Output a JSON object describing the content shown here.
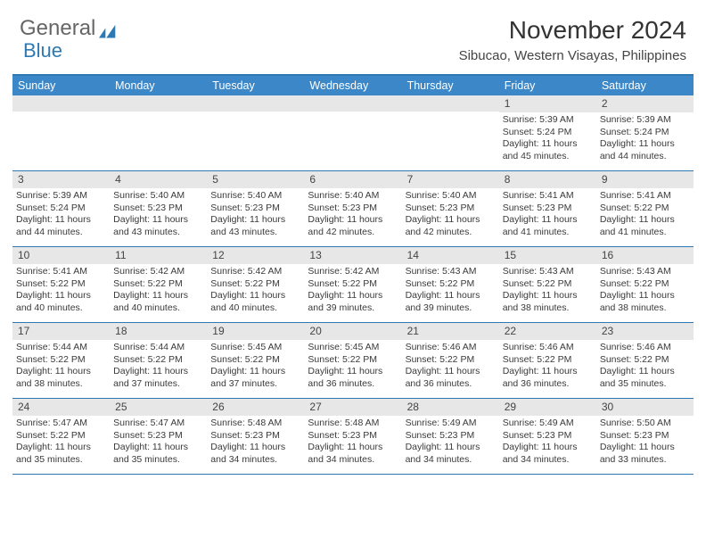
{
  "logo": {
    "text1": "General",
    "text2": "Blue"
  },
  "title": "November 2024",
  "location": "Sibucao, Western Visayas, Philippines",
  "colors": {
    "header_bar": "#3b87c8",
    "border": "#2d79b3",
    "daynum_bg": "#e7e7e7",
    "text": "#333333",
    "logo_blue": "#2d79b3"
  },
  "weekdays": [
    "Sunday",
    "Monday",
    "Tuesday",
    "Wednesday",
    "Thursday",
    "Friday",
    "Saturday"
  ],
  "weeks": [
    [
      {
        "day": "",
        "sunrise": "",
        "sunset": "",
        "daylight": ""
      },
      {
        "day": "",
        "sunrise": "",
        "sunset": "",
        "daylight": ""
      },
      {
        "day": "",
        "sunrise": "",
        "sunset": "",
        "daylight": ""
      },
      {
        "day": "",
        "sunrise": "",
        "sunset": "",
        "daylight": ""
      },
      {
        "day": "",
        "sunrise": "",
        "sunset": "",
        "daylight": ""
      },
      {
        "day": "1",
        "sunrise": "Sunrise: 5:39 AM",
        "sunset": "Sunset: 5:24 PM",
        "daylight": "Daylight: 11 hours and 45 minutes."
      },
      {
        "day": "2",
        "sunrise": "Sunrise: 5:39 AM",
        "sunset": "Sunset: 5:24 PM",
        "daylight": "Daylight: 11 hours and 44 minutes."
      }
    ],
    [
      {
        "day": "3",
        "sunrise": "Sunrise: 5:39 AM",
        "sunset": "Sunset: 5:24 PM",
        "daylight": "Daylight: 11 hours and 44 minutes."
      },
      {
        "day": "4",
        "sunrise": "Sunrise: 5:40 AM",
        "sunset": "Sunset: 5:23 PM",
        "daylight": "Daylight: 11 hours and 43 minutes."
      },
      {
        "day": "5",
        "sunrise": "Sunrise: 5:40 AM",
        "sunset": "Sunset: 5:23 PM",
        "daylight": "Daylight: 11 hours and 43 minutes."
      },
      {
        "day": "6",
        "sunrise": "Sunrise: 5:40 AM",
        "sunset": "Sunset: 5:23 PM",
        "daylight": "Daylight: 11 hours and 42 minutes."
      },
      {
        "day": "7",
        "sunrise": "Sunrise: 5:40 AM",
        "sunset": "Sunset: 5:23 PM",
        "daylight": "Daylight: 11 hours and 42 minutes."
      },
      {
        "day": "8",
        "sunrise": "Sunrise: 5:41 AM",
        "sunset": "Sunset: 5:23 PM",
        "daylight": "Daylight: 11 hours and 41 minutes."
      },
      {
        "day": "9",
        "sunrise": "Sunrise: 5:41 AM",
        "sunset": "Sunset: 5:22 PM",
        "daylight": "Daylight: 11 hours and 41 minutes."
      }
    ],
    [
      {
        "day": "10",
        "sunrise": "Sunrise: 5:41 AM",
        "sunset": "Sunset: 5:22 PM",
        "daylight": "Daylight: 11 hours and 40 minutes."
      },
      {
        "day": "11",
        "sunrise": "Sunrise: 5:42 AM",
        "sunset": "Sunset: 5:22 PM",
        "daylight": "Daylight: 11 hours and 40 minutes."
      },
      {
        "day": "12",
        "sunrise": "Sunrise: 5:42 AM",
        "sunset": "Sunset: 5:22 PM",
        "daylight": "Daylight: 11 hours and 40 minutes."
      },
      {
        "day": "13",
        "sunrise": "Sunrise: 5:42 AM",
        "sunset": "Sunset: 5:22 PM",
        "daylight": "Daylight: 11 hours and 39 minutes."
      },
      {
        "day": "14",
        "sunrise": "Sunrise: 5:43 AM",
        "sunset": "Sunset: 5:22 PM",
        "daylight": "Daylight: 11 hours and 39 minutes."
      },
      {
        "day": "15",
        "sunrise": "Sunrise: 5:43 AM",
        "sunset": "Sunset: 5:22 PM",
        "daylight": "Daylight: 11 hours and 38 minutes."
      },
      {
        "day": "16",
        "sunrise": "Sunrise: 5:43 AM",
        "sunset": "Sunset: 5:22 PM",
        "daylight": "Daylight: 11 hours and 38 minutes."
      }
    ],
    [
      {
        "day": "17",
        "sunrise": "Sunrise: 5:44 AM",
        "sunset": "Sunset: 5:22 PM",
        "daylight": "Daylight: 11 hours and 38 minutes."
      },
      {
        "day": "18",
        "sunrise": "Sunrise: 5:44 AM",
        "sunset": "Sunset: 5:22 PM",
        "daylight": "Daylight: 11 hours and 37 minutes."
      },
      {
        "day": "19",
        "sunrise": "Sunrise: 5:45 AM",
        "sunset": "Sunset: 5:22 PM",
        "daylight": "Daylight: 11 hours and 37 minutes."
      },
      {
        "day": "20",
        "sunrise": "Sunrise: 5:45 AM",
        "sunset": "Sunset: 5:22 PM",
        "daylight": "Daylight: 11 hours and 36 minutes."
      },
      {
        "day": "21",
        "sunrise": "Sunrise: 5:46 AM",
        "sunset": "Sunset: 5:22 PM",
        "daylight": "Daylight: 11 hours and 36 minutes."
      },
      {
        "day": "22",
        "sunrise": "Sunrise: 5:46 AM",
        "sunset": "Sunset: 5:22 PM",
        "daylight": "Daylight: 11 hours and 36 minutes."
      },
      {
        "day": "23",
        "sunrise": "Sunrise: 5:46 AM",
        "sunset": "Sunset: 5:22 PM",
        "daylight": "Daylight: 11 hours and 35 minutes."
      }
    ],
    [
      {
        "day": "24",
        "sunrise": "Sunrise: 5:47 AM",
        "sunset": "Sunset: 5:22 PM",
        "daylight": "Daylight: 11 hours and 35 minutes."
      },
      {
        "day": "25",
        "sunrise": "Sunrise: 5:47 AM",
        "sunset": "Sunset: 5:23 PM",
        "daylight": "Daylight: 11 hours and 35 minutes."
      },
      {
        "day": "26",
        "sunrise": "Sunrise: 5:48 AM",
        "sunset": "Sunset: 5:23 PM",
        "daylight": "Daylight: 11 hours and 34 minutes."
      },
      {
        "day": "27",
        "sunrise": "Sunrise: 5:48 AM",
        "sunset": "Sunset: 5:23 PM",
        "daylight": "Daylight: 11 hours and 34 minutes."
      },
      {
        "day": "28",
        "sunrise": "Sunrise: 5:49 AM",
        "sunset": "Sunset: 5:23 PM",
        "daylight": "Daylight: 11 hours and 34 minutes."
      },
      {
        "day": "29",
        "sunrise": "Sunrise: 5:49 AM",
        "sunset": "Sunset: 5:23 PM",
        "daylight": "Daylight: 11 hours and 34 minutes."
      },
      {
        "day": "30",
        "sunrise": "Sunrise: 5:50 AM",
        "sunset": "Sunset: 5:23 PM",
        "daylight": "Daylight: 11 hours and 33 minutes."
      }
    ]
  ]
}
